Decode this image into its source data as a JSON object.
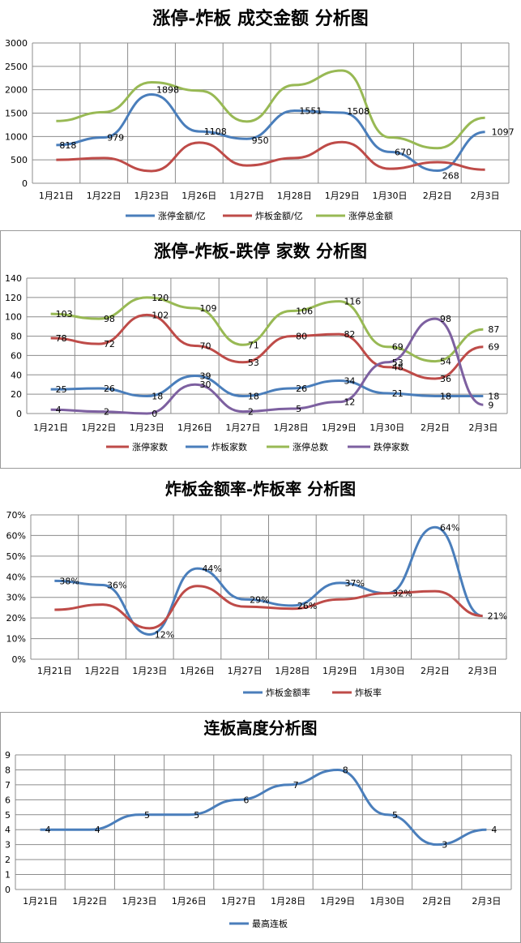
{
  "chart_data": [
    {
      "type": "line",
      "title": "涨停-炸板 成交金额 分析图",
      "categories": [
        "1月21日",
        "1月22日",
        "1月23日",
        "1月26日",
        "1月27日",
        "1月28日",
        "1月29日",
        "1月30日",
        "2月2日",
        "2月3日"
      ],
      "ylim": [
        0,
        3000
      ],
      "yticks": [
        "0",
        "500",
        "1000",
        "1500",
        "2000",
        "2500",
        "3000"
      ],
      "grid": true,
      "legend": "bottom",
      "series": [
        {
          "name": "涨停金额/亿",
          "color": "#4a7ebb",
          "values": [
            818,
            979,
            1898,
            1108,
            950,
            1551,
            1508,
            670,
            268,
            1097
          ],
          "labels": [
            "818",
            "979",
            "1898",
            "1108",
            "950",
            "1551",
            "1508",
            "670",
            "268",
            "1097"
          ]
        },
        {
          "name": "炸板金额/亿",
          "color": "#be4b48",
          "values": [
            500,
            540,
            260,
            870,
            380,
            540,
            880,
            310,
            450,
            290
          ]
        },
        {
          "name": "涨停总金额",
          "color": "#98b954",
          "values": [
            1330,
            1520,
            2160,
            1980,
            1320,
            2100,
            2410,
            980,
            750,
            1400
          ]
        }
      ]
    },
    {
      "type": "line",
      "title": "涨停-炸板-跌停 家数 分析图",
      "categories": [
        "1月21日",
        "1月22日",
        "1月23日",
        "1月26日",
        "1月27日",
        "1月28日",
        "1月29日",
        "1月30日",
        "2月2日",
        "2月3日"
      ],
      "ylim": [
        0,
        140
      ],
      "yticks": [
        "0",
        "20",
        "40",
        "60",
        "80",
        "100",
        "120",
        "140"
      ],
      "grid": true,
      "legend": "bottom",
      "series": [
        {
          "name": "涨停家数",
          "color": "#be4b48",
          "values": [
            78,
            72,
            102,
            70,
            53,
            80,
            82,
            48,
            36,
            69
          ],
          "labels": [
            "78",
            "72",
            "102",
            "70",
            "53",
            "80",
            "82",
            "48",
            "36",
            "69"
          ]
        },
        {
          "name": "炸板家数",
          "color": "#4a7ebb",
          "values": [
            25,
            26,
            18,
            39,
            18,
            26,
            34,
            21,
            18,
            18
          ],
          "labels": [
            "25",
            "26",
            "18",
            "39",
            "18",
            "26",
            "34",
            "21",
            "18",
            "18"
          ]
        },
        {
          "name": "涨停总数",
          "color": "#98b954",
          "values": [
            103,
            98,
            120,
            109,
            71,
            106,
            116,
            69,
            54,
            87
          ],
          "labels": [
            "103",
            "98",
            "120",
            "109",
            "71",
            "106",
            "116",
            "69",
            "54",
            "87"
          ]
        },
        {
          "name": "跌停家数",
          "color": "#7d60a0",
          "values": [
            4,
            2,
            0,
            30,
            2,
            5,
            12,
            53,
            98,
            9
          ],
          "labels": [
            "4",
            "2",
            "0",
            "30",
            "2",
            "5",
            "12",
            "53",
            "98",
            "9"
          ]
        }
      ]
    },
    {
      "type": "line",
      "title": "炸板金额率-炸板率 分析图",
      "categories": [
        "1月21日",
        "1月22日",
        "1月23日",
        "1月26日",
        "1月27日",
        "1月28日",
        "1月29日",
        "1月30日",
        "2月2日",
        "2月3日"
      ],
      "ylim": [
        0,
        70
      ],
      "yticks": [
        "0%",
        "10%",
        "20%",
        "30%",
        "40%",
        "50%",
        "60%",
        "70%"
      ],
      "grid": true,
      "legend": "bottom",
      "series": [
        {
          "name": "炸板金额率",
          "color": "#4a7ebb",
          "values": [
            38,
            36,
            12,
            44,
            29,
            26,
            37,
            32,
            64,
            21
          ],
          "labels": [
            "38%",
            "36%",
            "12%",
            "44%",
            "29%",
            "26%",
            "37%",
            "",
            "64%",
            "21%"
          ]
        },
        {
          "name": "炸板率",
          "color": "#be4b48",
          "values": [
            24,
            26.5,
            15,
            35.5,
            25.5,
            24.5,
            29,
            32,
            33,
            21
          ],
          "labels": [
            "",
            "",
            "",
            "",
            "",
            "",
            "",
            "32%",
            "",
            ""
          ]
        }
      ]
    },
    {
      "type": "line",
      "title": "连板高度分析图",
      "categories": [
        "1月21日",
        "1月22日",
        "1月23日",
        "1月26日",
        "1月27日",
        "1月28日",
        "1月29日",
        "1月30日",
        "2月2日",
        "2月3日"
      ],
      "ylim": [
        0,
        9
      ],
      "yticks": [
        "0",
        "1",
        "2",
        "3",
        "4",
        "5",
        "6",
        "7",
        "8",
        "9"
      ],
      "grid": true,
      "legend": "bottom",
      "series": [
        {
          "name": "最高连板",
          "color": "#4a7ebb",
          "values": [
            4,
            4,
            5,
            5,
            6,
            7,
            8,
            5,
            3,
            4
          ],
          "labels": [
            "4",
            "4",
            "5",
            "5",
            "6",
            "7",
            "8",
            "5",
            "3",
            "4"
          ]
        }
      ]
    }
  ]
}
